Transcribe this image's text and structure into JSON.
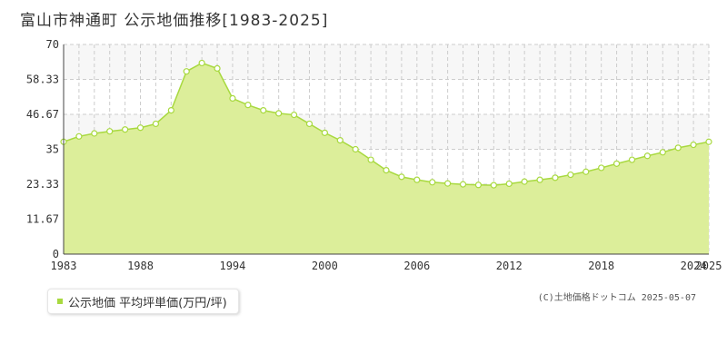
{
  "title": "富山市神通町 公示地価推移[1983-2025]",
  "legend_label": "公示地価 平均坪単価(万円/坪)",
  "credit": "(C)土地価格ドットコム 2025-05-07",
  "colors": {
    "area_fill": "#dcee9a",
    "line": "#a8d93f",
    "point_fill": "#ffffff",
    "grid": "#cccccc",
    "band": "#f7f7f7"
  },
  "chart_data": {
    "type": "area",
    "x": [
      1983,
      1984,
      1985,
      1986,
      1987,
      1988,
      1989,
      1990,
      1991,
      1992,
      1993,
      1994,
      1995,
      1996,
      1997,
      1998,
      1999,
      2000,
      2001,
      2002,
      2003,
      2004,
      2005,
      2006,
      2007,
      2008,
      2009,
      2010,
      2011,
      2012,
      2013,
      2014,
      2015,
      2016,
      2017,
      2018,
      2019,
      2020,
      2021,
      2022,
      2023,
      2024,
      2025
    ],
    "series": [
      {
        "name": "公示地価 平均坪単価(万円/坪)",
        "values": [
          37.5,
          39.3,
          40.3,
          41.0,
          41.6,
          42.2,
          43.5,
          48.0,
          61.0,
          63.8,
          62.0,
          52.0,
          49.8,
          48.0,
          47.0,
          46.5,
          43.5,
          40.5,
          38.0,
          35.0,
          31.5,
          28.0,
          25.8,
          24.8,
          24.0,
          23.6,
          23.3,
          23.1,
          23.0,
          23.5,
          24.2,
          24.8,
          25.5,
          26.5,
          27.5,
          28.8,
          30.2,
          31.5,
          32.8,
          34.0,
          35.5,
          36.5,
          37.5
        ]
      }
    ],
    "x_ticks": [
      "1983",
      "1988",
      "1994",
      "2000",
      "2006",
      "2012",
      "2018",
      "2024",
      "2025"
    ],
    "x_tick_values": [
      1983,
      1988,
      1994,
      2000,
      2006,
      2012,
      2018,
      2024,
      2025
    ],
    "y_ticks": [
      "0",
      "11.67",
      "23.33",
      "35",
      "46.67",
      "58.33",
      "70"
    ],
    "y_tick_values": [
      0,
      11.67,
      23.33,
      35,
      46.67,
      58.33,
      70
    ],
    "xlim": [
      1983,
      2025
    ],
    "ylim": [
      0,
      70
    ],
    "grid": true,
    "legend_position": "bottom-left"
  }
}
